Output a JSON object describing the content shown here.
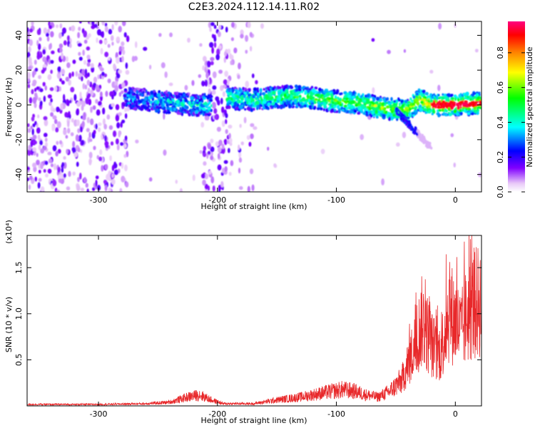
{
  "title": "C2E3.2024.112.14.11.R02",
  "chart_data": [
    {
      "type": "heatmap",
      "name": "spectrogram",
      "xlabel": "Height of straight line (km)",
      "ylabel": "Frequency (Hz)",
      "xlim": [
        -360,
        22
      ],
      "ylim": [
        -50,
        48
      ],
      "x_ticks": [
        -300,
        -200,
        -100,
        0
      ],
      "y_ticks": [
        -40,
        -20,
        0,
        20,
        40
      ],
      "colorbar": {
        "label": "Normalized spectral amplitude",
        "range": [
          0,
          0.98
        ],
        "ticks": [
          0.0,
          0.2,
          0.4,
          0.6,
          0.8
        ],
        "colors": [
          "#ffffff",
          "#e8c8f8",
          "#8000ff",
          "#0000ff",
          "#00ffff",
          "#00ff00",
          "#ffff00",
          "#ff8000",
          "#ff0000",
          "#ff0080"
        ]
      },
      "ridge": {
        "x": [
          -275,
          -250,
          -220,
          -200,
          -190,
          -170,
          -140,
          -120,
          -100,
          -80,
          -60,
          -40,
          -30,
          -20,
          0,
          20
        ],
        "y": [
          4,
          2,
          0,
          0,
          4,
          3,
          5,
          4,
          2,
          1,
          -2,
          -3,
          3,
          0,
          0,
          1
        ]
      },
      "grid": false
    },
    {
      "type": "line",
      "name": "snr",
      "xlabel": "Height of straight line (km)",
      "ylabel": "SNR (10 * v/v)",
      "y_multiplier": "(x10⁴)",
      "xlim": [
        -360,
        22
      ],
      "ylim": [
        0,
        1.85
      ],
      "x_ticks": [
        -300,
        -200,
        -100,
        0
      ],
      "y_ticks": [
        0.5,
        1.0,
        1.5
      ],
      "color": "#e8282a",
      "series": [
        {
          "x": [
            -360,
            -300,
            -260,
            -240,
            -225,
            -215,
            -205,
            -195,
            -170,
            -150,
            -130,
            -110,
            -95,
            -85,
            -75,
            -65,
            -55,
            -45,
            -38,
            -32,
            -28,
            -24,
            -20,
            -16,
            -12,
            -8,
            -5,
            0,
            5,
            10,
            15,
            22
          ],
          "y": [
            0.02,
            0.02,
            0.03,
            0.05,
            0.12,
            0.15,
            0.08,
            0.03,
            0.03,
            0.08,
            0.12,
            0.18,
            0.22,
            0.2,
            0.15,
            0.12,
            0.2,
            0.35,
            0.65,
            0.9,
            1.15,
            1.0,
            0.85,
            0.7,
            0.75,
            1.1,
            1.3,
            1.15,
            1.0,
            1.25,
            1.35,
            1.45
          ]
        }
      ],
      "grid": false
    }
  ]
}
